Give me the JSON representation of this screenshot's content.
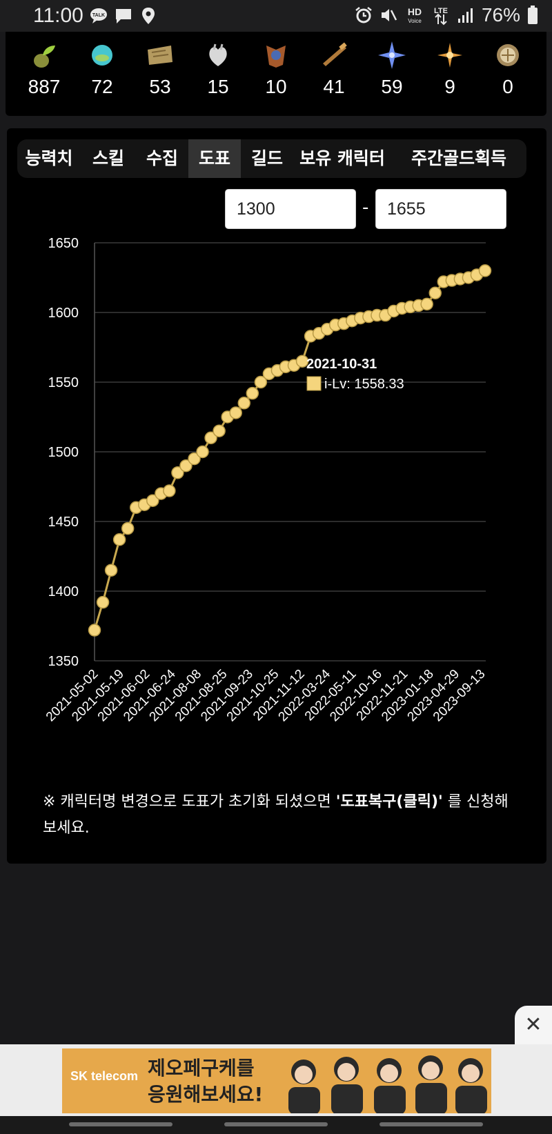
{
  "status": {
    "time": "11:00",
    "battery_text": "76%",
    "left_icons": [
      "talk-icon",
      "message-icon",
      "location-icon"
    ],
    "right_icons": [
      "alarm-icon",
      "mute-icon",
      "hd-voice-icon",
      "lte-icon",
      "signal-icon",
      "battery-icon"
    ],
    "talk_badge": "TALK",
    "hd_label": "HD",
    "voice_label": "Voice",
    "lte_label": "LTE"
  },
  "collection": [
    {
      "icon": "seed-icon",
      "count": "887"
    },
    {
      "icon": "island-orb-icon",
      "count": "72"
    },
    {
      "icon": "map-scroll-icon",
      "count": "53"
    },
    {
      "icon": "heart-icon",
      "count": "15"
    },
    {
      "icon": "art-icon",
      "count": "10"
    },
    {
      "icon": "telescope-icon",
      "count": "41"
    },
    {
      "icon": "star-leaf-icon",
      "count": "59"
    },
    {
      "icon": "compass-star-icon",
      "count": "9"
    },
    {
      "icon": "medal-icon",
      "count": "0"
    }
  ],
  "tabs": [
    {
      "label": "능력치",
      "active": false
    },
    {
      "label": "스킬",
      "active": false
    },
    {
      "label": "수집",
      "active": false
    },
    {
      "label": "도표",
      "active": true
    },
    {
      "label": "길드",
      "active": false
    },
    {
      "label": "보유 캐릭터",
      "active": false
    },
    {
      "label": "주간골드획득",
      "active": false
    }
  ],
  "range": {
    "min": "1300",
    "separator": "-",
    "max": "1655"
  },
  "tooltip": {
    "date": "2021-10-31",
    "label": "i-Lv: 1558.33"
  },
  "chart_data": {
    "type": "line",
    "ylim": [
      1350,
      1650
    ],
    "y_ticks": [
      "1350",
      "1400",
      "1450",
      "1500",
      "1550",
      "1600",
      "1650"
    ],
    "x_tick_labels": [
      "2021-05-02",
      "2021-05-19",
      "2021-06-02",
      "2021-06-24",
      "2021-08-08",
      "2021-08-25",
      "2021-09-23",
      "2021-10-25",
      "2021-11-12",
      "2022-03-24",
      "2022-05-11",
      "2022-10-16",
      "2022-11-21",
      "2023-01-18",
      "2023-04-29",
      "2023-09-13"
    ],
    "series": [
      {
        "values": [
          1372,
          1392,
          1415,
          1437,
          1445,
          1460,
          1462,
          1465,
          1470,
          1472,
          1485,
          1490,
          1495,
          1500,
          1510,
          1515,
          1525,
          1528,
          1535,
          1542,
          1550,
          1556,
          1558.33,
          1561,
          1562,
          1565,
          1583,
          1585,
          1588,
          1591,
          1592,
          1594,
          1596,
          1597,
          1598,
          1598,
          1601,
          1603,
          1604,
          1605,
          1606,
          1614,
          1622,
          1623,
          1624,
          1625,
          1627,
          1630
        ],
        "color": "#f5d57d"
      }
    ],
    "grid": true
  },
  "note": {
    "prefix": "※ 캐릭터명 변경으로 도표가 초기화 되셨으면 ",
    "link": "'도표복구(클릭)'",
    "suffix": " 를 신청해보세요."
  },
  "ad": {
    "close_label": "✕",
    "brand": "SK telecom",
    "line1": "제오페구케를",
    "line2": "응원해보세요!"
  }
}
